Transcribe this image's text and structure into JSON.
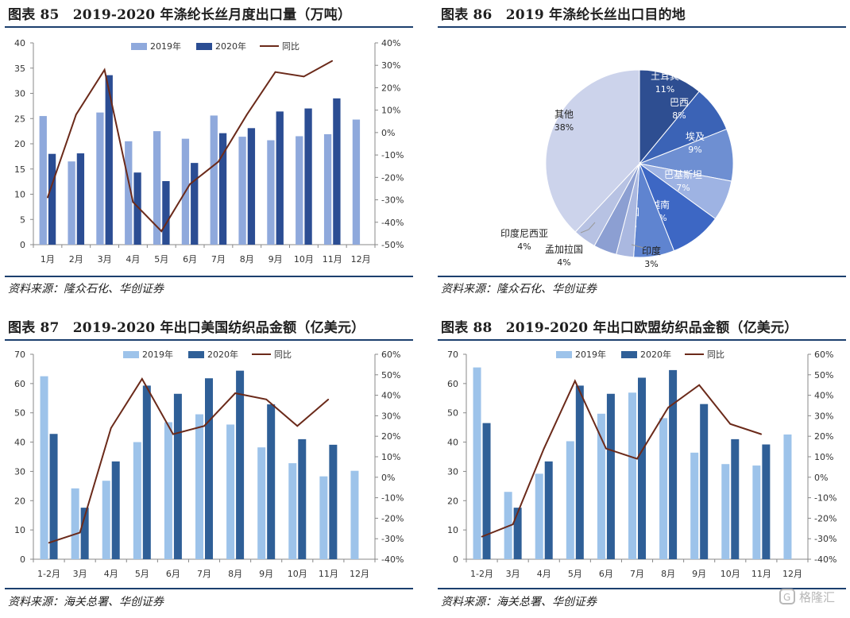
{
  "panels": {
    "p85": {
      "title": "图表 85　2019-2020 年涤纶长丝月度出口量（万吨）",
      "source": "资料来源：隆众石化、华创证券"
    },
    "p86": {
      "title": "图表 86　2019 年涤纶长丝出口目的地",
      "source": "资料来源：隆众石化、华创证券"
    },
    "p87": {
      "title": "图表 87　2019-2020 年出口美国纺织品金额（亿美元）",
      "source": "资料来源：海关总署、华创证券"
    },
    "p88": {
      "title": "图表 88　2019-2020 年出口欧盟纺织品金额（亿美元）",
      "source": "资料来源：海关总署、华创证券"
    }
  },
  "watermark": "格隆汇",
  "colors": {
    "bar2019_85": "#8fa9dc",
    "bar2020_85": "#2b4d93",
    "bar2019_us": "#9dc3ea",
    "bar2020_us": "#2f5f97",
    "line": "#6b2a1a",
    "axis": "#888888",
    "rule": "#1c3f6e"
  },
  "chart_data": [
    {
      "id": "c85",
      "type": "bar",
      "categories": [
        "1月",
        "2月",
        "3月",
        "4月",
        "5月",
        "6月",
        "7月",
        "8月",
        "9月",
        "10月",
        "11月",
        "12月"
      ],
      "series": [
        {
          "name": "2019年",
          "values": [
            25.5,
            16.5,
            26.2,
            20.5,
            22.5,
            21.0,
            25.6,
            21.4,
            20.7,
            21.5,
            21.9,
            24.8
          ]
        },
        {
          "name": "2020年",
          "values": [
            18.0,
            18.1,
            33.6,
            14.3,
            12.6,
            16.2,
            22.1,
            23.1,
            26.4,
            27.0,
            29.0,
            null
          ]
        },
        {
          "name": "同比",
          "axis": "right",
          "values": [
            -29,
            8,
            28,
            -31,
            -44,
            -23,
            -13,
            8,
            27,
            25,
            32,
            null
          ]
        }
      ],
      "ylim": [
        0,
        40
      ],
      "yticks": [
        "0",
        "5",
        "10",
        "15",
        "20",
        "25",
        "30",
        "35",
        "40"
      ],
      "y2lim": [
        -50,
        40
      ],
      "y2ticks": [
        "-50%",
        "-40%",
        "-30%",
        "-20%",
        "-10%",
        "0%",
        "10%",
        "20%",
        "30%",
        "40%"
      ],
      "legend": [
        "2019年",
        "2020年",
        "同比"
      ]
    },
    {
      "id": "c86",
      "type": "pie",
      "slices": [
        {
          "label": "土耳其",
          "value": 11,
          "pct": "11%",
          "color": "#2e4e91"
        },
        {
          "label": "巴西",
          "value": 8,
          "pct": "8%",
          "color": "#3b63b6"
        },
        {
          "label": "埃及",
          "value": 9,
          "pct": "9%",
          "color": "#6e8fd2"
        },
        {
          "label": "巴基斯坦",
          "value": 7,
          "pct": "7%",
          "color": "#9eb3e3"
        },
        {
          "label": "越南",
          "value": 9,
          "pct": "9%",
          "color": "#3d67c4"
        },
        {
          "label": "韩国",
          "value": 7,
          "pct": "7%",
          "color": "#5f84d0"
        },
        {
          "label": "印度",
          "value": 3,
          "pct": "3%",
          "color": "#aab8e0"
        },
        {
          "label": "孟加拉国",
          "value": 4,
          "pct": "4%",
          "color": "#8c9fd2"
        },
        {
          "label": "印度尼西亚",
          "value": 4,
          "pct": "4%",
          "color": "#b7c2e3"
        },
        {
          "label": "其他",
          "value": 38,
          "pct": "38%",
          "color": "#ccd3eb"
        }
      ]
    },
    {
      "id": "c87",
      "type": "bar",
      "categories": [
        "1-2月",
        "3月",
        "4月",
        "5月",
        "6月",
        "7月",
        "8月",
        "9月",
        "10月",
        "11月",
        "12月"
      ],
      "series": [
        {
          "name": "2019年",
          "values": [
            62.5,
            24.2,
            26.8,
            40.0,
            46.8,
            49.5,
            46.0,
            38.2,
            32.8,
            28.3,
            30.2
          ]
        },
        {
          "name": "2020年",
          "values": [
            42.8,
            17.6,
            33.4,
            59.3,
            56.5,
            61.8,
            64.4,
            52.9,
            41.0,
            39.1,
            null
          ]
        },
        {
          "name": "同比",
          "axis": "right",
          "values": [
            -32,
            -27,
            24,
            48,
            21,
            25,
            41,
            38,
            25,
            38,
            null
          ]
        }
      ],
      "ylim": [
        0,
        70
      ],
      "yticks": [
        "0",
        "10",
        "20",
        "30",
        "40",
        "50",
        "60",
        "70"
      ],
      "y2lim": [
        -40,
        60
      ],
      "y2ticks": [
        "-40%",
        "-30%",
        "-20%",
        "-10%",
        "0%",
        "10%",
        "20%",
        "30%",
        "40%",
        "50%",
        "60%"
      ],
      "legend": [
        "2019年",
        "2020年",
        "同比"
      ]
    },
    {
      "id": "c88",
      "type": "bar",
      "categories": [
        "1-2月",
        "3月",
        "4月",
        "5月",
        "6月",
        "7月",
        "8月",
        "9月",
        "10月",
        "11月",
        "12月"
      ],
      "series": [
        {
          "name": "2019年",
          "values": [
            65.5,
            23.0,
            29.2,
            40.3,
            49.7,
            56.9,
            48.2,
            36.4,
            32.5,
            32.0,
            42.6
          ]
        },
        {
          "name": "2020年",
          "values": [
            46.5,
            17.6,
            33.4,
            59.3,
            56.5,
            62.0,
            64.6,
            53.0,
            41.0,
            39.2,
            null
          ]
        },
        {
          "name": "同比",
          "axis": "right",
          "values": [
            -29,
            -23,
            14,
            47,
            14,
            9,
            34,
            45,
            26,
            21,
            null
          ]
        }
      ],
      "ylim": [
        0,
        70
      ],
      "yticks": [
        "0",
        "10",
        "20",
        "30",
        "40",
        "50",
        "60",
        "70"
      ],
      "y2lim": [
        -40,
        60
      ],
      "y2ticks": [
        "-40%",
        "-30%",
        "-20%",
        "-10%",
        "0%",
        "10%",
        "20%",
        "30%",
        "40%",
        "50%",
        "60%"
      ],
      "legend": [
        "2019年",
        "2020年",
        "同比"
      ]
    }
  ]
}
